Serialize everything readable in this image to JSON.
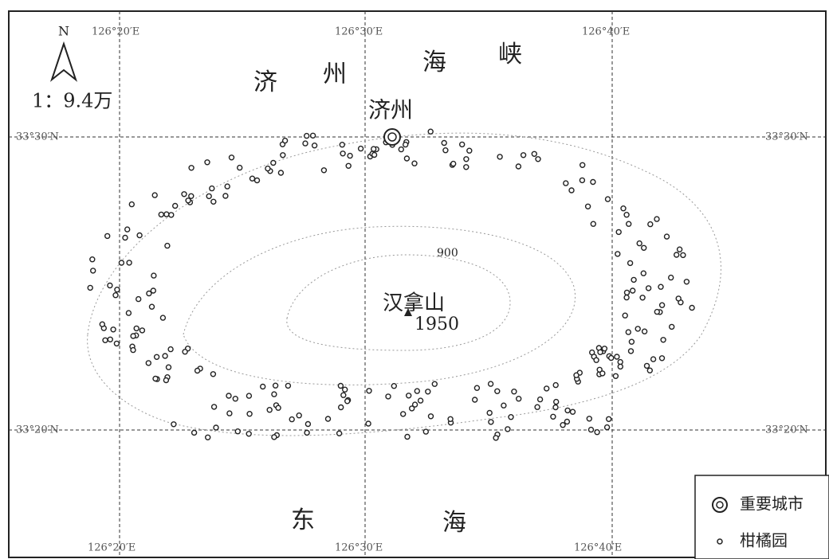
{
  "map": {
    "north": "N",
    "scale": "1：9.4万",
    "strait": [
      "济",
      "州",
      "海",
      "峡"
    ],
    "city": "济州",
    "peak": {
      "name": "汉拿山",
      "elevation": "1950"
    },
    "contour": "900",
    "sea": [
      "东",
      "海"
    ],
    "lon_labels_top": [
      "126°20′E",
      "126°30′E",
      "126°40′E"
    ],
    "lon_labels_bottom": [
      "126°20′E",
      "126°30′E",
      "126°40′E"
    ],
    "lat_labels_left": [
      "33°30′N",
      "33°20′N"
    ],
    "lat_labels_right": [
      "33°30′N",
      "33°20′N"
    ],
    "legend": [
      {
        "label": "重要城市"
      },
      {
        "label": "柑橘园"
      }
    ]
  }
}
